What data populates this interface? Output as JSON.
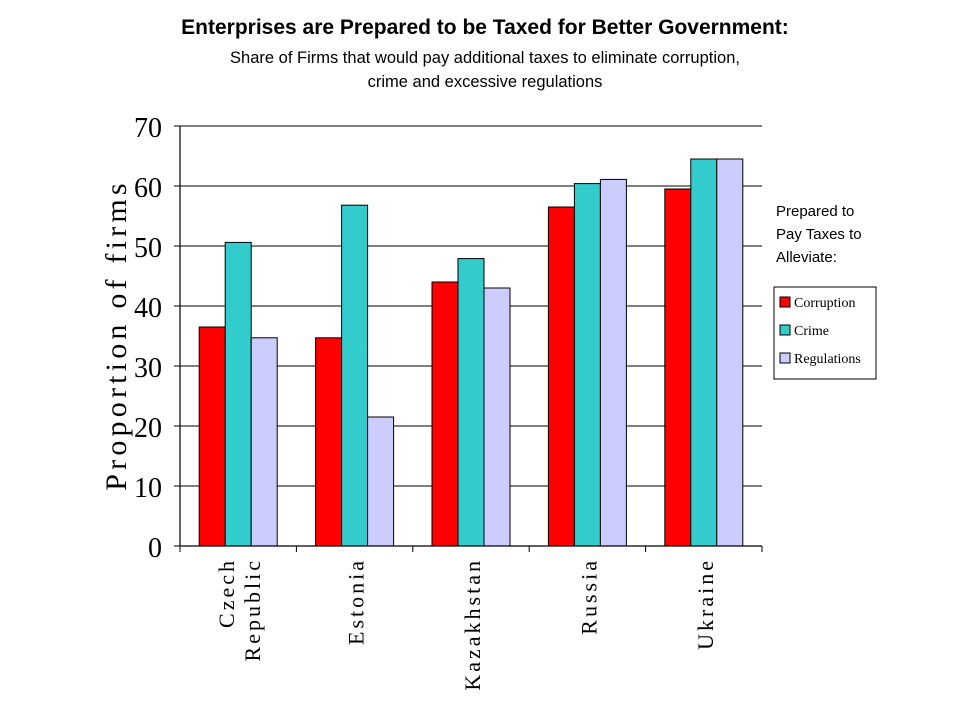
{
  "title": "Enterprises are Prepared to be Taxed for Better Government:",
  "subtitle": [
    "Share of Firms that would pay additional taxes to eliminate corruption,",
    "crime and excessive regulations"
  ],
  "legend_title": [
    "Prepared to",
    "Pay Taxes to",
    "Alleviate:"
  ],
  "colors": {
    "Corruption": "#ff0000",
    "Crime": "#33cccc",
    "Regulations": "#ccccff"
  },
  "chart_data": {
    "type": "bar",
    "title": "Enterprises are Prepared to be Taxed for Better Government:",
    "subtitle": "Share of Firms that would pay additional taxes to eliminate corruption, crime and excessive regulations",
    "xlabel": "",
    "ylabel": "Proportion of firms",
    "ylim": [
      0,
      70
    ],
    "yticks": [
      0,
      10,
      20,
      30,
      40,
      50,
      60,
      70
    ],
    "grid": true,
    "legend_placement": "right",
    "categories": [
      "Czech Republic",
      "Estonia",
      "Kazakhstan",
      "Russia",
      "Ukraine"
    ],
    "category_lines": [
      [
        "Czech",
        "Republic"
      ],
      [
        "Estonia"
      ],
      [
        "Kazakhstan"
      ],
      [
        "Russia"
      ],
      [
        "Ukraine"
      ]
    ],
    "series": [
      {
        "name": "Corruption",
        "values": [
          36.5,
          34.7,
          44,
          56.5,
          59.5
        ]
      },
      {
        "name": "Crime",
        "values": [
          50.6,
          56.8,
          47.9,
          60.4,
          64.5
        ]
      },
      {
        "name": "Regulations",
        "values": [
          34.7,
          21.5,
          43,
          61.1,
          64.5
        ]
      }
    ]
  }
}
